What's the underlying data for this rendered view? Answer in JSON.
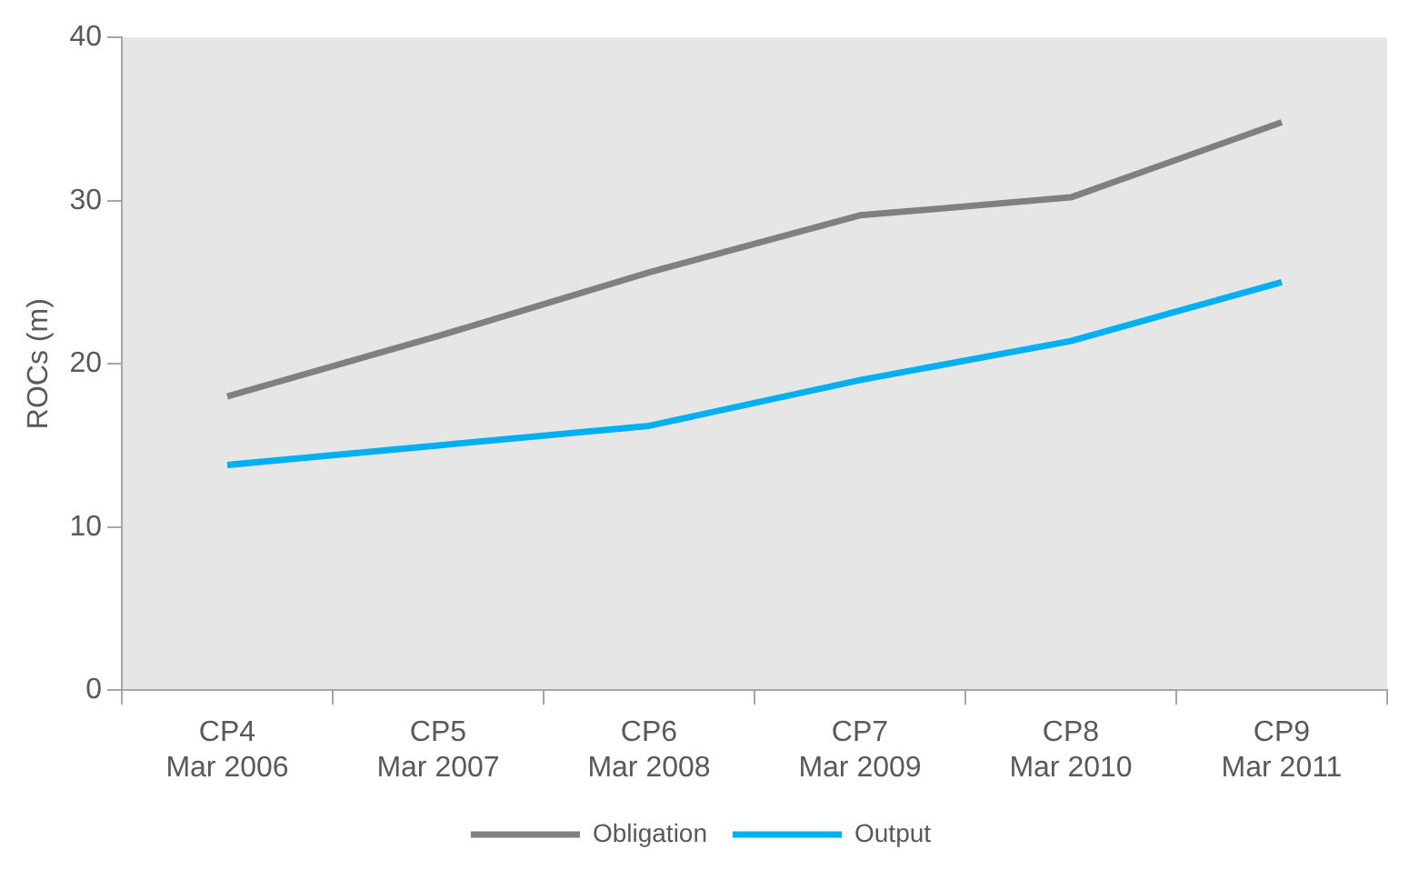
{
  "chart_data": {
    "type": "line",
    "ylabel": "ROCs (m)",
    "categories": [
      "CP4\nMar 2006",
      "CP5\nMar 2007",
      "CP6\nMar 2008",
      "CP7\nMar 2009",
      "CP8\nMar 2010",
      "CP9\nMar 2011"
    ],
    "series": [
      {
        "name": "Obligation",
        "color": "#808080",
        "values": [
          18,
          21.7,
          25.6,
          29.1,
          30.2,
          34.8
        ]
      },
      {
        "name": "Output",
        "color": "#00b0f0",
        "values": [
          13.8,
          15,
          16.2,
          19,
          21.4,
          25
        ]
      }
    ],
    "ylim": [
      0,
      40
    ],
    "yticks": [
      0,
      10,
      20,
      30,
      40
    ],
    "grid": false,
    "legend": "bottom",
    "marker": "none",
    "line_style": "solid"
  }
}
